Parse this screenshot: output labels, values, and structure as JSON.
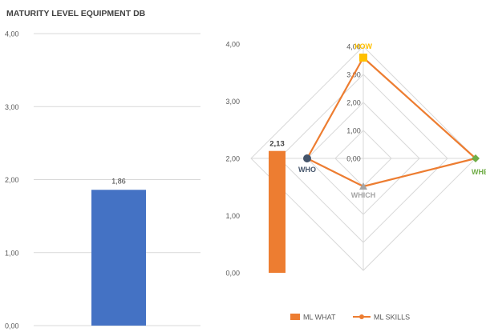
{
  "chart_data": [
    {
      "type": "bar",
      "title": "MATURITY LEVEL EQUIPMENT DB",
      "ylim": [
        0,
        4
      ],
      "yticks": [
        "0,00",
        "1,00",
        "2,00",
        "3,00",
        "4,00"
      ],
      "grid": true,
      "series": [
        {
          "values": [
            1.86
          ],
          "data_labels": [
            "1,86"
          ],
          "color": "#4472C4"
        }
      ]
    },
    {
      "type": "bar",
      "ylim": [
        0,
        4
      ],
      "yticks": [
        "0,00",
        "1,00",
        "2,00",
        "3,00",
        "4,00"
      ],
      "series": [
        {
          "name": "ML WHAT",
          "values": [
            2.13
          ],
          "data_labels": [
            "2,13"
          ],
          "color": "#ED7D31"
        }
      ],
      "legend": "bottom"
    },
    {
      "type": "radar",
      "axes": [
        "HOW",
        "WHEN",
        "WHICH",
        "WHO"
      ],
      "axis_label_colors": [
        "#FFC000",
        "#70AD47",
        "#A5A5A5",
        "#44546A"
      ],
      "rlim": [
        0,
        4
      ],
      "rticks": [
        "0,00",
        "1,00",
        "2,00",
        "3,00",
        "4,00"
      ],
      "series": [
        {
          "name": "ML SKILLS",
          "values": [
            3.6,
            4.0,
            1.0,
            2.0
          ],
          "color": "#ED7D31"
        }
      ],
      "legend": "bottom"
    }
  ]
}
